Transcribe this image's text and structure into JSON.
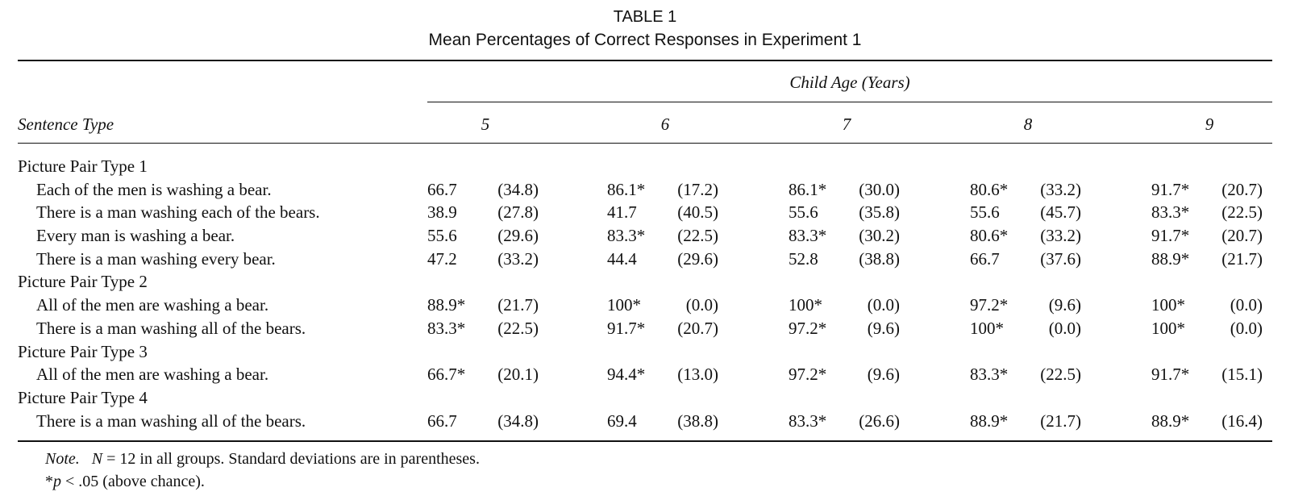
{
  "table": {
    "label": "TABLE 1",
    "title": "Mean Percentages of Correct Responses in Experiment 1",
    "spanner": "Child Age (Years)",
    "stub_heading": "Sentence Type",
    "age_columns": [
      "5",
      "6",
      "7",
      "8",
      "9"
    ],
    "groups": [
      {
        "label": "Picture Pair Type 1",
        "rows": [
          {
            "sentence": "Each of the men is washing a bear.",
            "cells": [
              {
                "mean": "66.7",
                "sd": "(34.8)"
              },
              {
                "mean": "86.1*",
                "sd": "(17.2)"
              },
              {
                "mean": "86.1*",
                "sd": "(30.0)"
              },
              {
                "mean": "80.6*",
                "sd": "(33.2)"
              },
              {
                "mean": "91.7*",
                "sd": "(20.7)"
              }
            ]
          },
          {
            "sentence": "There is a man washing each of the bears.",
            "cells": [
              {
                "mean": "38.9",
                "sd": "(27.8)"
              },
              {
                "mean": "41.7",
                "sd": "(40.5)"
              },
              {
                "mean": "55.6",
                "sd": "(35.8)"
              },
              {
                "mean": "55.6",
                "sd": "(45.7)"
              },
              {
                "mean": "83.3*",
                "sd": "(22.5)"
              }
            ]
          },
          {
            "sentence": "Every man is washing a bear.",
            "cells": [
              {
                "mean": "55.6",
                "sd": "(29.6)"
              },
              {
                "mean": "83.3*",
                "sd": "(22.5)"
              },
              {
                "mean": "83.3*",
                "sd": "(30.2)"
              },
              {
                "mean": "80.6*",
                "sd": "(33.2)"
              },
              {
                "mean": "91.7*",
                "sd": "(20.7)"
              }
            ]
          },
          {
            "sentence": "There is a man washing every bear.",
            "cells": [
              {
                "mean": "47.2",
                "sd": "(33.2)"
              },
              {
                "mean": "44.4",
                "sd": "(29.6)"
              },
              {
                "mean": "52.8",
                "sd": "(38.8)"
              },
              {
                "mean": "66.7",
                "sd": "(37.6)"
              },
              {
                "mean": "88.9*",
                "sd": "(21.7)"
              }
            ]
          }
        ]
      },
      {
        "label": "Picture Pair Type 2",
        "rows": [
          {
            "sentence": "All of the men are washing a bear.",
            "cells": [
              {
                "mean": "88.9*",
                "sd": "(21.7)"
              },
              {
                "mean": "100*",
                "sd": "(0.0)"
              },
              {
                "mean": "100*",
                "sd": "(0.0)"
              },
              {
                "mean": "97.2*",
                "sd": "(9.6)"
              },
              {
                "mean": "100*",
                "sd": "(0.0)"
              }
            ]
          },
          {
            "sentence": "There is a man washing all of the bears.",
            "cells": [
              {
                "mean": "83.3*",
                "sd": "(22.5)"
              },
              {
                "mean": "91.7*",
                "sd": "(20.7)"
              },
              {
                "mean": "97.2*",
                "sd": "(9.6)"
              },
              {
                "mean": "100*",
                "sd": "(0.0)"
              },
              {
                "mean": "100*",
                "sd": "(0.0)"
              }
            ]
          }
        ]
      },
      {
        "label": "Picture Pair Type 3",
        "rows": [
          {
            "sentence": "All of the men are washing a bear.",
            "cells": [
              {
                "mean": "66.7*",
                "sd": "(20.1)"
              },
              {
                "mean": "94.4*",
                "sd": "(13.0)"
              },
              {
                "mean": "97.2*",
                "sd": "(9.6)"
              },
              {
                "mean": "83.3*",
                "sd": "(22.5)"
              },
              {
                "mean": "91.7*",
                "sd": "(15.1)"
              }
            ]
          }
        ]
      },
      {
        "label": "Picture Pair Type 4",
        "rows": [
          {
            "sentence": "There is a man washing all of the bears.",
            "cells": [
              {
                "mean": "66.7",
                "sd": "(34.8)"
              },
              {
                "mean": "69.4",
                "sd": "(38.8)"
              },
              {
                "mean": "83.3*",
                "sd": "(26.6)"
              },
              {
                "mean": "88.9*",
                "sd": "(21.7)"
              },
              {
                "mean": "88.9*",
                "sd": "(16.4)"
              }
            ]
          }
        ]
      }
    ],
    "note": {
      "label": "Note.",
      "n_symbol": "N",
      "text": " = 12 in all groups. Standard deviations are in parentheses."
    },
    "footnote": {
      "star": "*",
      "p_symbol": "p",
      "text": " < .05 (above chance)."
    }
  }
}
